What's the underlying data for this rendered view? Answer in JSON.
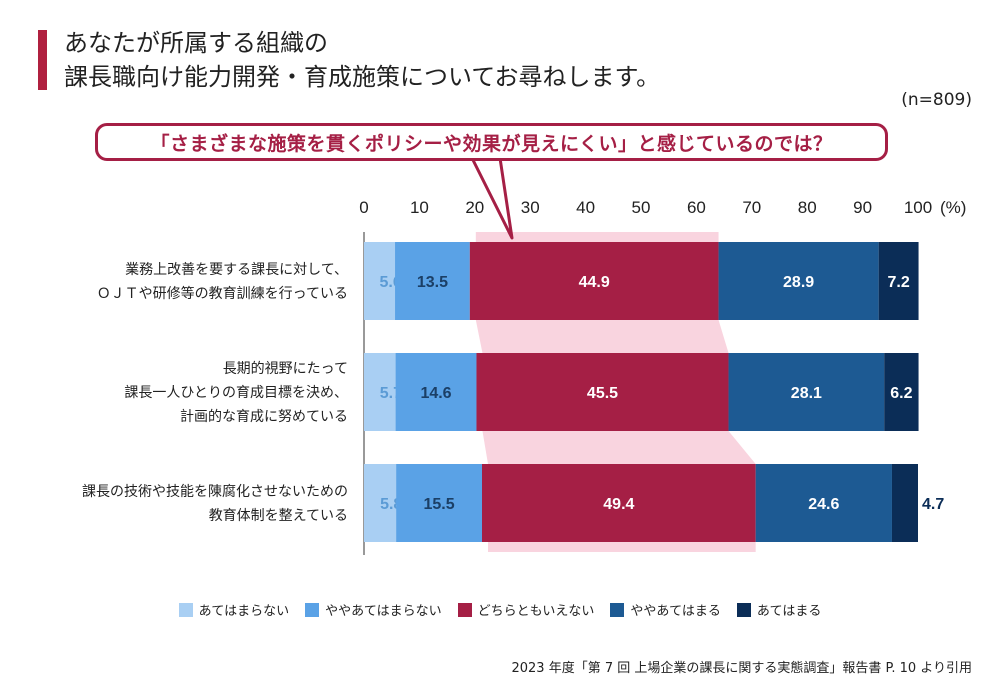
{
  "title": {
    "line1": "あなたが所属する組織の",
    "line2": "課長職向け能力開発・育成施策についてお尋ねします。"
  },
  "sample_size": "(n=809)",
  "callout": "「さまざまな施策を貫くポリシーや効果が見えにくい」と感じているのでは？",
  "source": "2023 年度「第 7 回 上場企業の課長に関する実態調査」報告書 P. 10 より引用",
  "colors": {
    "accent": "#a51f45",
    "highlight": "#f9d4df"
  },
  "chart_data": {
    "type": "bar",
    "orientation": "horizontal",
    "stacked": true,
    "xlim": [
      0,
      100
    ],
    "xticks": [
      "0",
      "10",
      "20",
      "30",
      "40",
      "50",
      "60",
      "70",
      "80",
      "90",
      "100"
    ],
    "xunit": "(%)",
    "categories": [
      [
        "業務上改善を要する課長に対して、",
        "ＯＪＴや研修等の教育訓練を行っている"
      ],
      [
        "長期的視野にたって",
        "課長一人ひとりの育成目標を決め、",
        "計画的な育成に努めている"
      ],
      [
        "課長の技術や技能を陳腐化させないための",
        "教育体制を整えている"
      ]
    ],
    "series": [
      {
        "name": "あてはまらない",
        "color": "#a9cff3",
        "label_color": "#5b9bd5",
        "values": [
          5.6,
          5.7,
          5.8
        ]
      },
      {
        "name": "ややあてはまらない",
        "color": "#5aa2e6",
        "label_color": "#1b3f66",
        "values": [
          13.5,
          14.6,
          15.5
        ]
      },
      {
        "name": "どちらともいえない",
        "color": "#a51f45",
        "label_color": "#ffffff",
        "values": [
          44.9,
          45.5,
          49.4
        ]
      },
      {
        "name": "ややあてはまる",
        "color": "#1d5a93",
        "label_color": "#ffffff",
        "values": [
          28.9,
          28.1,
          24.6
        ]
      },
      {
        "name": "あてはまる",
        "color": "#0b2d57",
        "label_color": "#ffffff",
        "values": [
          7.2,
          6.2,
          4.7
        ]
      }
    ],
    "highlight_series": "どちらともいえない",
    "legend_position": "bottom"
  }
}
